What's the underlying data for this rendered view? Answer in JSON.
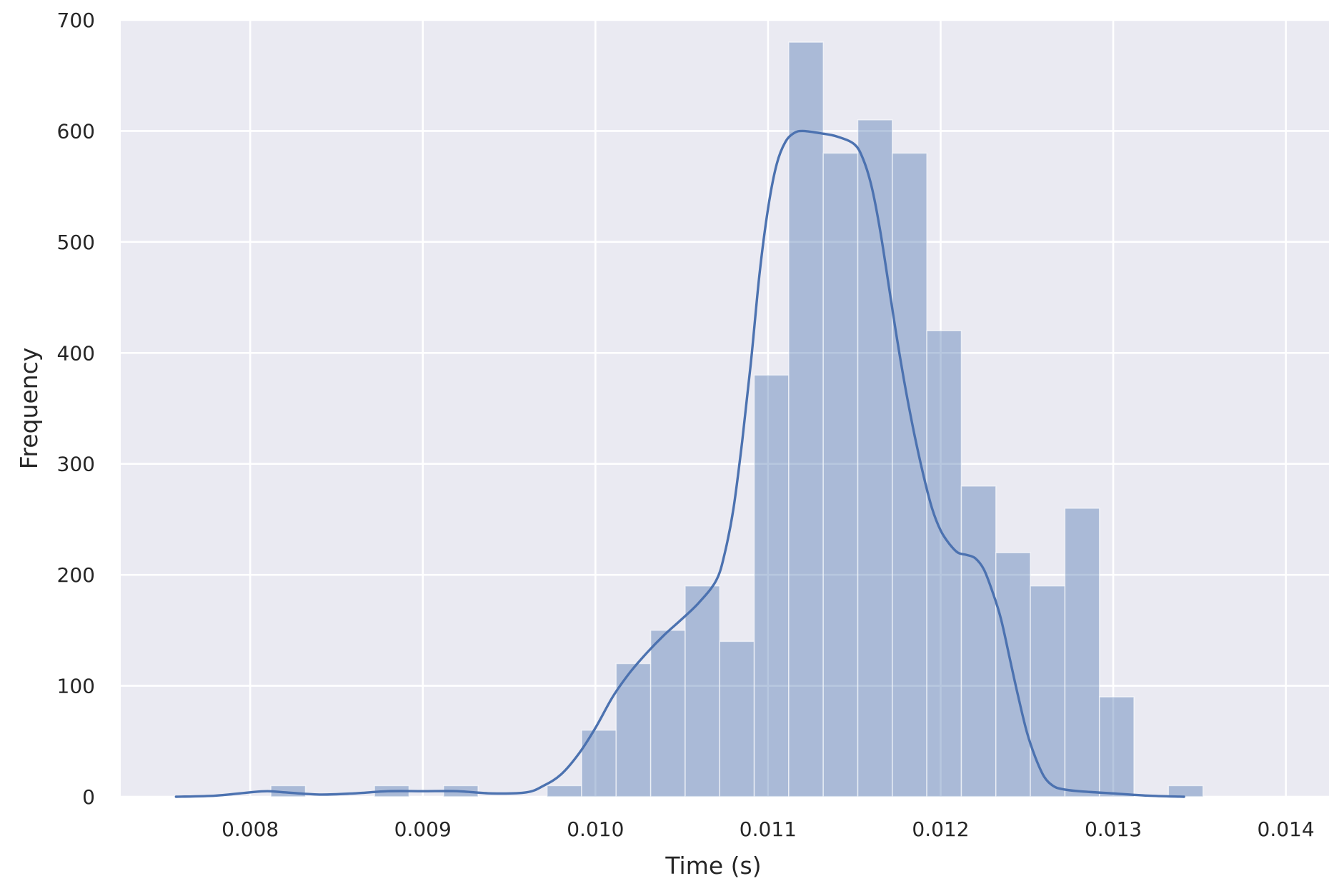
{
  "chart_data": {
    "type": "bar",
    "title": "",
    "xlabel": "Time (s)",
    "ylabel": "Frequency",
    "xlim": [
      0.00725,
      0.01425
    ],
    "ylim": [
      0,
      700
    ],
    "xticks": [
      "0.008",
      "0.009",
      "0.010",
      "0.011",
      "0.012",
      "0.013",
      "0.014"
    ],
    "yticks": [
      "0",
      "100",
      "200",
      "300",
      "400",
      "500",
      "600",
      "700"
    ],
    "grid": true,
    "bins": [
      {
        "x0": 0.00812,
        "x1": 0.00832,
        "count": 10
      },
      {
        "x0": 0.00872,
        "x1": 0.00892,
        "count": 10
      },
      {
        "x0": 0.00912,
        "x1": 0.00932,
        "count": 10
      },
      {
        "x0": 0.00972,
        "x1": 0.00992,
        "count": 10
      },
      {
        "x0": 0.00992,
        "x1": 0.01012,
        "count": 60
      },
      {
        "x0": 0.01012,
        "x1": 0.01032,
        "count": 120
      },
      {
        "x0": 0.01032,
        "x1": 0.01052,
        "count": 150
      },
      {
        "x0": 0.01052,
        "x1": 0.01072,
        "count": 190
      },
      {
        "x0": 0.01072,
        "x1": 0.01092,
        "count": 140
      },
      {
        "x0": 0.01092,
        "x1": 0.01112,
        "count": 380
      },
      {
        "x0": 0.01112,
        "x1": 0.01132,
        "count": 680
      },
      {
        "x0": 0.01132,
        "x1": 0.01152,
        "count": 580
      },
      {
        "x0": 0.01152,
        "x1": 0.01172,
        "count": 610
      },
      {
        "x0": 0.01172,
        "x1": 0.01192,
        "count": 580
      },
      {
        "x0": 0.01192,
        "x1": 0.01212,
        "count": 420
      },
      {
        "x0": 0.01212,
        "x1": 0.01232,
        "count": 280
      },
      {
        "x0": 0.01232,
        "x1": 0.01252,
        "count": 220
      },
      {
        "x0": 0.01252,
        "x1": 0.01272,
        "count": 190
      },
      {
        "x0": 0.01272,
        "x1": 0.01292,
        "count": 260
      },
      {
        "x0": 0.01292,
        "x1": 0.01312,
        "count": 90
      },
      {
        "x0": 0.01332,
        "x1": 0.01352,
        "count": 10
      }
    ],
    "kde": [
      [
        0.00757,
        0
      ],
      [
        0.0078,
        1
      ],
      [
        0.008,
        4
      ],
      [
        0.0081,
        5
      ],
      [
        0.0082,
        4
      ],
      [
        0.0084,
        2
      ],
      [
        0.0086,
        3
      ],
      [
        0.0088,
        5
      ],
      [
        0.009,
        5
      ],
      [
        0.0092,
        5
      ],
      [
        0.0094,
        3
      ],
      [
        0.0096,
        4
      ],
      [
        0.0097,
        10
      ],
      [
        0.0098,
        20
      ],
      [
        0.0099,
        38
      ],
      [
        0.01,
        62
      ],
      [
        0.0101,
        90
      ],
      [
        0.0102,
        112
      ],
      [
        0.0103,
        130
      ],
      [
        0.0104,
        146
      ],
      [
        0.0105,
        160
      ],
      [
        0.0106,
        175
      ],
      [
        0.0107,
        195
      ],
      [
        0.01075,
        220
      ],
      [
        0.0108,
        260
      ],
      [
        0.01085,
        320
      ],
      [
        0.0109,
        390
      ],
      [
        0.01095,
        470
      ],
      [
        0.011,
        530
      ],
      [
        0.01105,
        570
      ],
      [
        0.0111,
        590
      ],
      [
        0.01115,
        598
      ],
      [
        0.0112,
        600
      ],
      [
        0.0113,
        598
      ],
      [
        0.0114,
        595
      ],
      [
        0.0115,
        588
      ],
      [
        0.01155,
        575
      ],
      [
        0.0116,
        550
      ],
      [
        0.01165,
        510
      ],
      [
        0.0117,
        460
      ],
      [
        0.01175,
        410
      ],
      [
        0.0118,
        365
      ],
      [
        0.01185,
        325
      ],
      [
        0.0119,
        290
      ],
      [
        0.01195,
        260
      ],
      [
        0.012,
        240
      ],
      [
        0.01205,
        228
      ],
      [
        0.0121,
        220
      ],
      [
        0.01215,
        218
      ],
      [
        0.0122,
        215
      ],
      [
        0.01225,
        205
      ],
      [
        0.0123,
        185
      ],
      [
        0.01235,
        160
      ],
      [
        0.0124,
        125
      ],
      [
        0.01245,
        90
      ],
      [
        0.0125,
        58
      ],
      [
        0.01255,
        35
      ],
      [
        0.0126,
        18
      ],
      [
        0.01265,
        10
      ],
      [
        0.0127,
        7
      ],
      [
        0.0128,
        5
      ],
      [
        0.013,
        3
      ],
      [
        0.0132,
        1
      ],
      [
        0.01341,
        0
      ]
    ],
    "colors": {
      "background": "#eaeaf2",
      "grid": "#ffffff",
      "bar_fill": "#4c72b0",
      "kde_line": "#4c72b0",
      "text": "#262626"
    }
  }
}
